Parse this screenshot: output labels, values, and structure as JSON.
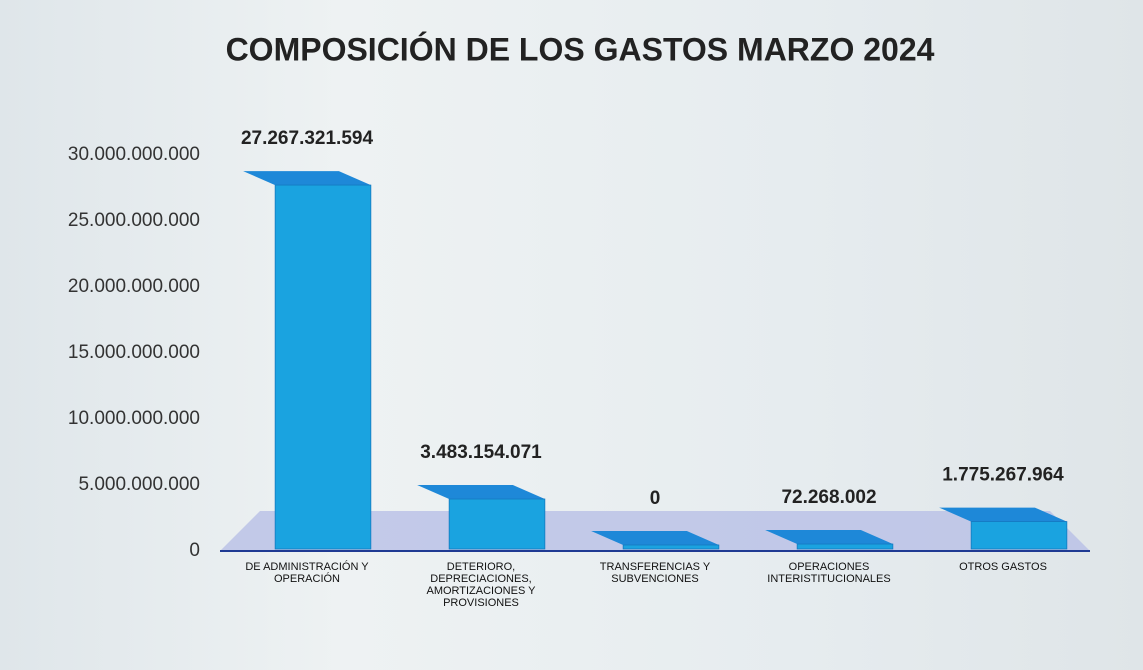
{
  "chart_data": {
    "type": "bar3d",
    "title": "COMPOSICIÓN DE LOS GASTOS MARZO 2024",
    "categories": [
      "DE ADMINISTRACIÓN Y OPERACIÓN",
      "DETERIORO, DEPRECIACIONES, AMORTIZACIONES Y PROVISIONES",
      "TRANSFERENCIAS Y SUBVENCIONES",
      "OPERACIONES INTERISTITUCIONALES",
      "OTROS GASTOS"
    ],
    "values": [
      27267321594,
      3483154071,
      0,
      72268002,
      1775267964
    ],
    "value_labels": [
      "27.267.321.594",
      "3.483.154.071",
      "0",
      "72.268.002",
      "1.775.267.964"
    ],
    "color": "#1aa3e0",
    "ylim": [
      0,
      30000000000
    ],
    "yticks": [
      0,
      {
        "value": 5000000000,
        "label": "5.000.000.000"
      },
      {
        "value": 10000000000,
        "label": "10.000.000.000"
      },
      {
        "value": 15000000000,
        "label": "15.000.000.000"
      },
      {
        "value": 20000000000,
        "label": "20.000.000.000"
      },
      {
        "value": 25000000000,
        "label": "25.000.000.000"
      },
      {
        "value": 30000000000,
        "label": "30.000.000.000"
      }
    ],
    "grid": false
  }
}
